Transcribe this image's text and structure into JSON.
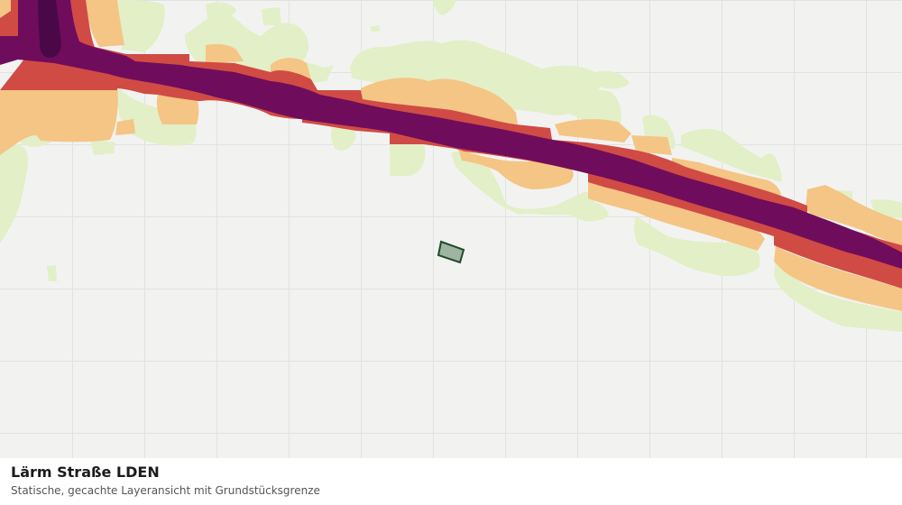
{
  "caption": {
    "title": "Lärm Straße LDEN",
    "subtitle": "Statische, gecachte Layeransicht mit Grundstücksgrenze"
  },
  "map": {
    "colors": {
      "background": "#f2f3f1",
      "grid": "#e0e2df",
      "band_light_green": "#e3efc7",
      "band_light_orange": "#f4c585",
      "band_red": "#d04b44",
      "band_purple": "#700c5c",
      "band_dark_purple": "#4a0848",
      "parcel_fill": "#9fb4a1",
      "parcel_stroke": "#1f4b2a"
    }
  }
}
